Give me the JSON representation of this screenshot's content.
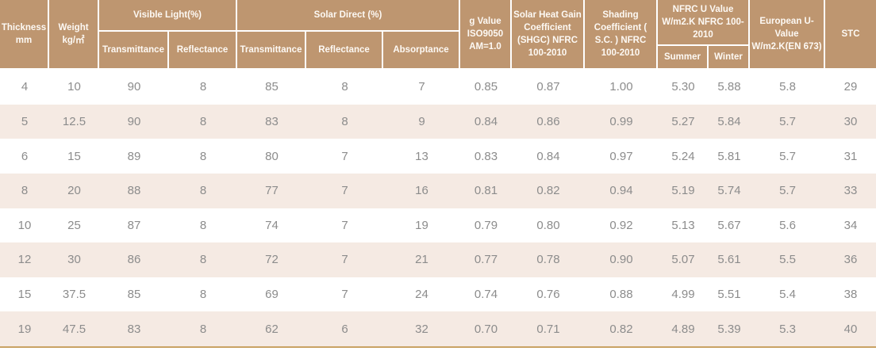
{
  "colors": {
    "header_bg": "#be9670",
    "header_text": "#fdf9f4",
    "stripe_bg": "#f5eae3",
    "row_bg": "#ffffff",
    "body_text": "#8c8c8c",
    "divider": "#ffffff",
    "bottom_rule": "#c9a264"
  },
  "table": {
    "header": {
      "thickness": "Thickness mm",
      "weight": "Weight kg/㎡",
      "visible_light": {
        "group": "Visible Light(%)",
        "transmittance": "Transmittance",
        "reflectance": "Reflectance"
      },
      "solar_direct": {
        "group": "Solar Direct (%)",
        "transmittance": "Transmittance",
        "reflectance": "Reflectance",
        "absorptance": "Absorptance"
      },
      "g_value": "g Value ISO9050 AM=1.0",
      "shgc": "Solar Heat Gain Coefficient (SHGC) NFRC 100-2010",
      "shading_coefficient": "Shading Coefficient ( S.C. ) NFRC 100-2010",
      "nfrc_u_value": {
        "group": "NFRC U Value W/m2.K NFRC 100-2010",
        "summer": "Summer",
        "winter": "Winter"
      },
      "european_u_value": "European U-Value W/m2.K(EN 673)",
      "stc": "STC"
    },
    "rows": [
      [
        "4",
        "10",
        "90",
        "8",
        "85",
        "8",
        "7",
        "0.85",
        "0.87",
        "1.00",
        "5.30",
        "5.88",
        "5.8",
        "29"
      ],
      [
        "5",
        "12.5",
        "90",
        "8",
        "83",
        "8",
        "9",
        "0.84",
        "0.86",
        "0.99",
        "5.27",
        "5.84",
        "5.7",
        "30"
      ],
      [
        "6",
        "15",
        "89",
        "8",
        "80",
        "7",
        "13",
        "0.83",
        "0.84",
        "0.97",
        "5.24",
        "5.81",
        "5.7",
        "31"
      ],
      [
        "8",
        "20",
        "88",
        "8",
        "77",
        "7",
        "16",
        "0.81",
        "0.82",
        "0.94",
        "5.19",
        "5.74",
        "5.7",
        "33"
      ],
      [
        "10",
        "25",
        "87",
        "8",
        "74",
        "7",
        "19",
        "0.79",
        "0.80",
        "0.92",
        "5.13",
        "5.67",
        "5.6",
        "34"
      ],
      [
        "12",
        "30",
        "86",
        "8",
        "72",
        "7",
        "21",
        "0.77",
        "0.78",
        "0.90",
        "5.07",
        "5.61",
        "5.5",
        "36"
      ],
      [
        "15",
        "37.5",
        "85",
        "8",
        "69",
        "7",
        "24",
        "0.74",
        "0.76",
        "0.88",
        "4.99",
        "5.51",
        "5.4",
        "38"
      ],
      [
        "19",
        "47.5",
        "83",
        "8",
        "62",
        "6",
        "32",
        "0.70",
        "0.71",
        "0.82",
        "4.89",
        "5.39",
        "5.3",
        "40"
      ]
    ]
  }
}
